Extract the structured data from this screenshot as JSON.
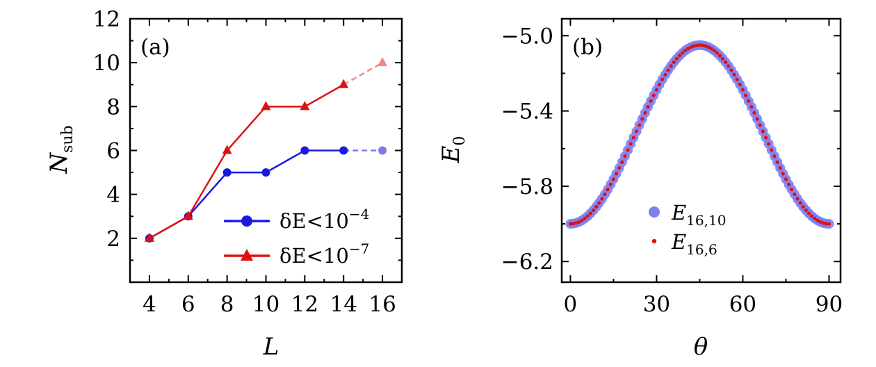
{
  "chart_data": [
    {
      "type": "line",
      "panel_label": "(a)",
      "xlabel": "L",
      "ylabel": "N",
      "ylabel_sub": "sub",
      "xlim": [
        3,
        17
      ],
      "ylim": [
        0,
        12
      ],
      "xticks": [
        4,
        6,
        8,
        10,
        12,
        14,
        16
      ],
      "yticks": [
        2,
        4,
        6,
        8,
        10,
        12
      ],
      "series": [
        {
          "name": "δE<10−4",
          "legend_main": "δE<10",
          "legend_exp": "−4",
          "color": "#1a1adc",
          "extrap_color": "#7b7be8",
          "marker": "circle",
          "x": [
            4,
            6,
            8,
            10,
            12,
            14
          ],
          "values": [
            2,
            3,
            5,
            5,
            6,
            6
          ],
          "extrapolated": {
            "x": [
              14,
              16
            ],
            "values": [
              6,
              6
            ]
          }
        },
        {
          "name": "δE<10−7",
          "legend_main": "δE<10",
          "legend_exp": "−7",
          "color": "#e01010",
          "extrap_color": "#f08a8a",
          "marker": "triangle",
          "x": [
            4,
            6,
            8,
            10,
            12,
            14
          ],
          "values": [
            2,
            3,
            6,
            8,
            8,
            9
          ],
          "extrapolated": {
            "x": [
              14,
              16
            ],
            "values": [
              9,
              10
            ]
          }
        }
      ]
    },
    {
      "type": "scatter",
      "panel_label": "(b)",
      "xlabel": "θ",
      "ylabel": "E",
      "ylabel_sub": "0",
      "xlim": [
        -3,
        94
      ],
      "ylim": [
        -6.31,
        -4.91
      ],
      "xticks": [
        0,
        30,
        60,
        90
      ],
      "yticks": [
        -5.0,
        -5.4,
        -5.8,
        -6.2
      ],
      "ytick_labels": [
        "−5.0",
        "−5.4",
        "−5.8",
        "−6.2"
      ],
      "curve": {
        "function": "E0(θ) = a + b·sin²(2θ)",
        "a": -6.0,
        "b": 0.95,
        "theta_step": 1,
        "theta_range": [
          0,
          90
        ]
      },
      "series": [
        {
          "name": "E16,10",
          "legend_main": "E",
          "legend_sub": "16,10",
          "color": "#7f7fee",
          "marker": "large-circle"
        },
        {
          "name": "E16,6",
          "legend_main": "E",
          "legend_sub": "16,6",
          "color": "#dd1111",
          "marker": "small-dot"
        }
      ]
    }
  ]
}
